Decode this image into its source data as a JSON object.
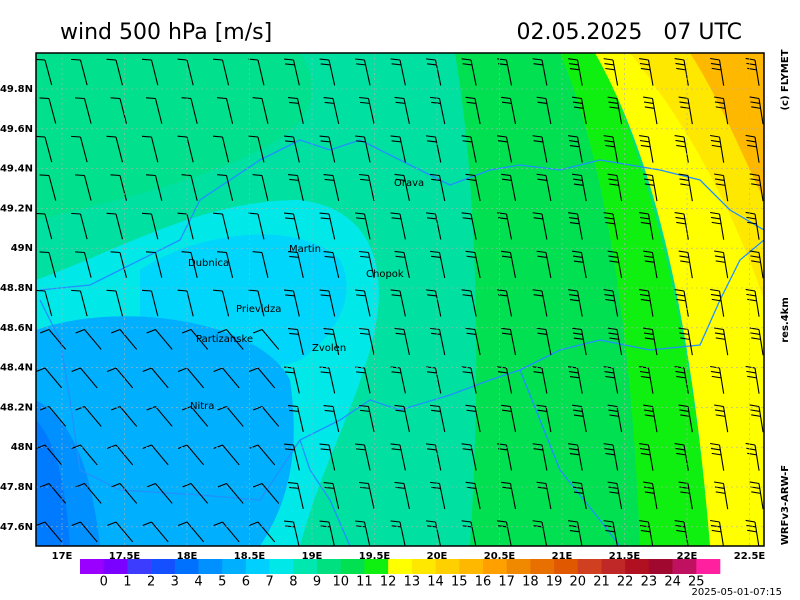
{
  "header": {
    "title": "wind 500 hPa [m/s]",
    "datetime": "02.05.2025   07 UTC"
  },
  "side_labels": {
    "copyright": "(c) FLYMET",
    "resolution": "res.4km",
    "model": "WRFv3-ARW-F"
  },
  "map": {
    "lat_labels": [
      "49.8N",
      "49.6N",
      "49.4N",
      "49.2N",
      "49N",
      "48.8N",
      "48.6N",
      "48.4N",
      "48.2N",
      "48N",
      "47.8N",
      "47.6N"
    ],
    "lon_labels": [
      "17E",
      "17.5E",
      "18E",
      "18.5E",
      "19E",
      "19.5E",
      "20E",
      "20.5E",
      "21E",
      "21.5E",
      "22E",
      "22.5E"
    ],
    "cities": [
      "Orava",
      "Martin",
      "Dubnica",
      "Chopok",
      "Prievidza",
      "Partizanske",
      "Zvolen",
      "Nitra"
    ]
  },
  "colorbar": {
    "labels": [
      0,
      1,
      2,
      3,
      4,
      5,
      6,
      7,
      8,
      9,
      10,
      11,
      12,
      13,
      14,
      15,
      16,
      17,
      18,
      19,
      20,
      21,
      22,
      23,
      24,
      25
    ],
    "colors": [
      "#9900ff",
      "#7a00ff",
      "#3c3cff",
      "#1450ff",
      "#0070ff",
      "#0090ff",
      "#00b0ff",
      "#00d0ff",
      "#00e8e8",
      "#00e8b0",
      "#00e080",
      "#00e050",
      "#10f010",
      "#ffff00",
      "#ffe800",
      "#ffd000",
      "#ffb800",
      "#ffa000",
      "#f08800",
      "#e87000",
      "#e05800",
      "#d04020",
      "#c02828",
      "#b01020",
      "#a00830",
      "#c01060",
      "#ff20a0"
    ]
  },
  "footer": {
    "timestamp": "2025-05-01-07:15"
  }
}
